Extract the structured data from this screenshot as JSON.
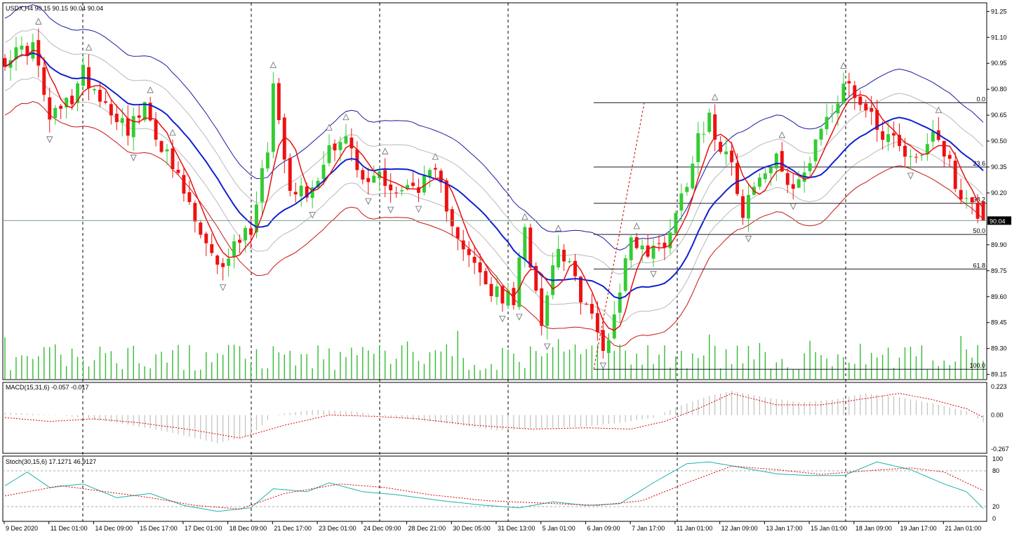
{
  "colors": {
    "bull": "#33cc33",
    "bear": "#ee1111",
    "ma_fast": "#e81010",
    "ma_slow": "#1020d0",
    "env_outer_upper": "#1a1aa0",
    "env_outer_lower": "#c81414",
    "env_inner": "#b8b8b8",
    "volume": "#33bb33",
    "grid_v": "#000000",
    "macd_hist": "#c0c0c0",
    "macd_signal": "#dd0000",
    "stoch_main": "#20b2aa",
    "stoch_signal": "#dd0000",
    "fib": "#1a1a2e",
    "current_price_line": "#7a9a8a"
  },
  "main": {
    "header": "USDX,H4  90.15 90.15 90.04 90.04",
    "price_axis": [
      "91.25",
      "91.10",
      "90.95",
      "90.80",
      "90.65",
      "90.50",
      "90.35",
      "90.20",
      "89.90",
      "89.75",
      "89.60",
      "89.45",
      "89.30",
      "89.15"
    ],
    "current_price": "90.04"
  },
  "fibonacci": {
    "levels": [
      {
        "label": "0.0",
        "price": 90.722
      },
      {
        "label": "23.6",
        "price": 90.35
      },
      {
        "label": "38.2",
        "price": 90.14
      },
      {
        "label": "50.0",
        "price": 89.96
      },
      {
        "label": "61.8",
        "price": 89.76
      },
      {
        "label": "100.0",
        "price": 89.18
      }
    ]
  },
  "macd": {
    "header": "MACD(15,31,6) -0.057 -0.017",
    "axis": [
      "0.223",
      "0.00",
      "-0.267"
    ]
  },
  "stoch": {
    "header": "Stoch(30,15,6) 17.1271 46.9127",
    "axis": [
      "100",
      "80",
      "20",
      "0"
    ]
  },
  "time_axis": [
    "9 Dec 2020",
    "11 Dec 01:00",
    "14 Dec 09:00",
    "15 Dec 17:00",
    "17 Dec 01:00",
    "18 Dec 09:00",
    "21 Dec 17:00",
    "23 Dec 01:00",
    "24 Dec 09:00",
    "28 Dec 21:00",
    "30 Dec 05:00",
    "31 Dec 13:00",
    "5 Jan 01:00",
    "6 Jan 09:00",
    "7 Jan 17:00",
    "11 Jan 01:00",
    "12 Jan 09:00",
    "13 Jan 17:00",
    "15 Jan 01:00",
    "18 Jan 09:00",
    "19 Jan 17:00",
    "21 Jan 01:00"
  ],
  "chart_data": {
    "type": "candlestick",
    "symbol": "USDX",
    "timeframe": "H4",
    "y_range": [
      89.12,
      91.3
    ],
    "candle_count": 176,
    "close_path": [
      [
        0,
        90.98
      ],
      [
        5,
        91.05
      ],
      [
        8,
        90.62
      ],
      [
        12,
        90.75
      ],
      [
        14,
        90.9
      ],
      [
        18,
        90.72
      ],
      [
        22,
        90.58
      ],
      [
        25,
        90.68
      ],
      [
        28,
        90.48
      ],
      [
        32,
        90.2
      ],
      [
        35,
        89.95
      ],
      [
        38,
        89.75
      ],
      [
        41,
        89.9
      ],
      [
        44,
        90.0
      ],
      [
        47,
        90.48
      ],
      [
        48,
        90.82
      ],
      [
        51,
        90.25
      ],
      [
        55,
        90.2
      ],
      [
        58,
        90.48
      ],
      [
        61,
        90.52
      ],
      [
        64,
        90.25
      ],
      [
        67,
        90.32
      ],
      [
        70,
        90.2
      ],
      [
        74,
        90.25
      ],
      [
        77,
        90.3
      ],
      [
        80,
        90.05
      ],
      [
        83,
        89.82
      ],
      [
        87,
        89.62
      ],
      [
        91,
        89.58
      ],
      [
        93,
        89.98
      ],
      [
        96,
        89.48
      ],
      [
        99,
        89.92
      ],
      [
        102,
        89.68
      ],
      [
        105,
        89.48
      ],
      [
        107,
        89.28
      ],
      [
        109,
        89.5
      ],
      [
        110,
        89.65
      ],
      [
        112,
        89.95
      ],
      [
        115,
        89.85
      ],
      [
        118,
        89.92
      ],
      [
        120,
        90.08
      ],
      [
        122,
        90.28
      ],
      [
        124,
        90.55
      ],
      [
        126,
        90.62
      ],
      [
        128,
        90.48
      ],
      [
        130,
        90.42
      ],
      [
        132,
        90.05
      ],
      [
        133,
        90.18
      ],
      [
        135,
        90.28
      ],
      [
        138,
        90.38
      ],
      [
        141,
        90.25
      ],
      [
        144,
        90.35
      ],
      [
        146,
        90.58
      ],
      [
        148,
        90.68
      ],
      [
        151,
        90.85
      ],
      [
        153,
        90.72
      ],
      [
        155,
        90.65
      ],
      [
        157,
        90.55
      ],
      [
        160,
        90.5
      ],
      [
        162,
        90.4
      ],
      [
        164,
        90.42
      ],
      [
        166,
        90.58
      ],
      [
        168,
        90.45
      ],
      [
        170,
        90.25
      ],
      [
        173,
        90.12
      ],
      [
        175,
        90.04
      ]
    ],
    "macd_hist_path": [
      [
        0,
        0.02
      ],
      [
        10,
        0.0
      ],
      [
        20,
        -0.06
      ],
      [
        30,
        -0.14
      ],
      [
        38,
        -0.22
      ],
      [
        44,
        -0.16
      ],
      [
        48,
        0.0
      ],
      [
        55,
        0.04
      ],
      [
        62,
        0.03
      ],
      [
        70,
        -0.02
      ],
      [
        80,
        -0.07
      ],
      [
        88,
        -0.12
      ],
      [
        96,
        -0.1
      ],
      [
        104,
        -0.09
      ],
      [
        110,
        -0.06
      ],
      [
        116,
        -0.02
      ],
      [
        120,
        0.06
      ],
      [
        126,
        0.15
      ],
      [
        130,
        0.19
      ],
      [
        136,
        0.14
      ],
      [
        142,
        0.1
      ],
      [
        148,
        0.12
      ],
      [
        154,
        0.17
      ],
      [
        160,
        0.14
      ],
      [
        166,
        0.09
      ],
      [
        172,
        0.03
      ],
      [
        175,
        -0.057
      ]
    ],
    "macd_signal_path": [
      [
        0,
        -0.02
      ],
      [
        8,
        -0.05
      ],
      [
        16,
        -0.03
      ],
      [
        24,
        -0.06
      ],
      [
        34,
        -0.12
      ],
      [
        42,
        -0.18
      ],
      [
        50,
        -0.08
      ],
      [
        58,
        0.0
      ],
      [
        66,
        -0.01
      ],
      [
        74,
        -0.03
      ],
      [
        84,
        -0.08
      ],
      [
        94,
        -0.11
      ],
      [
        104,
        -0.1
      ],
      [
        112,
        -0.11
      ],
      [
        118,
        -0.05
      ],
      [
        124,
        0.05
      ],
      [
        130,
        0.17
      ],
      [
        138,
        0.08
      ],
      [
        146,
        0.08
      ],
      [
        154,
        0.13
      ],
      [
        160,
        0.17
      ],
      [
        166,
        0.12
      ],
      [
        172,
        0.05
      ],
      [
        175,
        -0.017
      ]
    ],
    "stoch_main_path": [
      [
        0,
        55
      ],
      [
        4,
        78
      ],
      [
        8,
        52
      ],
      [
        14,
        58
      ],
      [
        20,
        35
      ],
      [
        26,
        42
      ],
      [
        32,
        22
      ],
      [
        38,
        12
      ],
      [
        44,
        18
      ],
      [
        48,
        50
      ],
      [
        54,
        45
      ],
      [
        58,
        60
      ],
      [
        64,
        45
      ],
      [
        70,
        40
      ],
      [
        78,
        30
      ],
      [
        86,
        22
      ],
      [
        92,
        18
      ],
      [
        98,
        28
      ],
      [
        104,
        22
      ],
      [
        110,
        25
      ],
      [
        116,
        60
      ],
      [
        122,
        92
      ],
      [
        126,
        95
      ],
      [
        132,
        85
      ],
      [
        138,
        75
      ],
      [
        144,
        72
      ],
      [
        150,
        72
      ],
      [
        156,
        95
      ],
      [
        162,
        82
      ],
      [
        168,
        58
      ],
      [
        172,
        45
      ],
      [
        175,
        17
      ]
    ],
    "stoch_signal_path": [
      [
        0,
        38
      ],
      [
        10,
        55
      ],
      [
        18,
        45
      ],
      [
        26,
        35
      ],
      [
        34,
        22
      ],
      [
        42,
        16
      ],
      [
        50,
        42
      ],
      [
        60,
        58
      ],
      [
        68,
        52
      ],
      [
        76,
        40
      ],
      [
        86,
        30
      ],
      [
        96,
        26
      ],
      [
        106,
        22
      ],
      [
        114,
        30
      ],
      [
        122,
        60
      ],
      [
        130,
        88
      ],
      [
        138,
        82
      ],
      [
        146,
        74
      ],
      [
        154,
        80
      ],
      [
        162,
        85
      ],
      [
        168,
        78
      ],
      [
        172,
        60
      ],
      [
        175,
        47
      ]
    ],
    "grid": true
  }
}
